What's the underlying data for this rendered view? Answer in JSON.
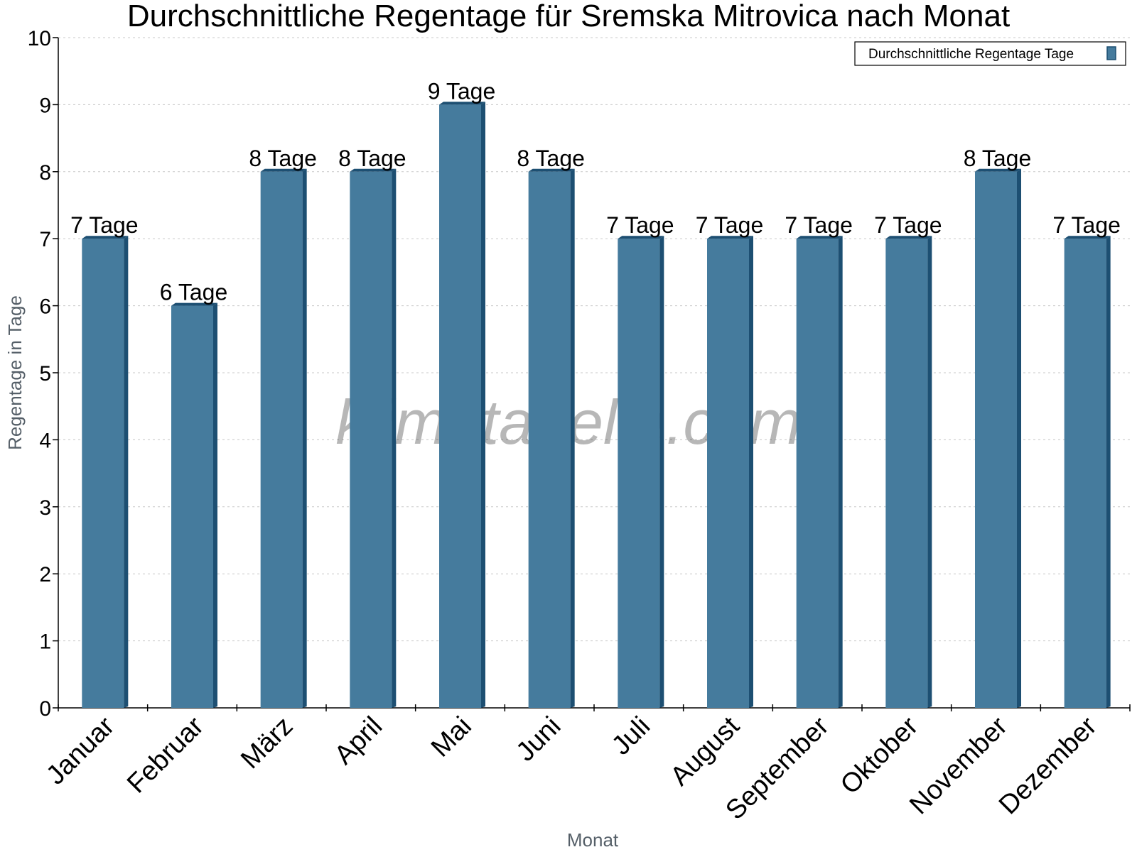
{
  "chart_data": {
    "type": "bar",
    "title": "Durchschnittliche Regentage für Sremska Mitrovica nach Monat",
    "xlabel": "Monat",
    "ylabel": "Regentage in Tage",
    "ylim": [
      0,
      10
    ],
    "yticks": [
      "0",
      "1",
      "2",
      "3",
      "4",
      "5",
      "6",
      "7",
      "8",
      "9",
      "10"
    ],
    "categories": [
      "Januar",
      "Februar",
      "März",
      "April",
      "Mai",
      "Juni",
      "Juli",
      "August",
      "September",
      "Oktober",
      "November",
      "Dezember"
    ],
    "series": [
      {
        "name": "Durchschnittliche Regentage Tage",
        "values": [
          7,
          6,
          8,
          8,
          9,
          8,
          7,
          7,
          7,
          7,
          8,
          7
        ],
        "labels": [
          "7 Tage",
          "6 Tage",
          "8 Tage",
          "8 Tage",
          "9 Tage",
          "8 Tage",
          "7 Tage",
          "7 Tage",
          "7 Tage",
          "7 Tage",
          "8 Tage",
          "7 Tage"
        ]
      }
    ],
    "grid": true,
    "legend_position": "top-right",
    "watermark": "klimatabelle.com",
    "colors": {
      "bar_front": "#457b9d",
      "bar_side": "#1d4f72",
      "bar_top": "#1d4f72"
    }
  }
}
